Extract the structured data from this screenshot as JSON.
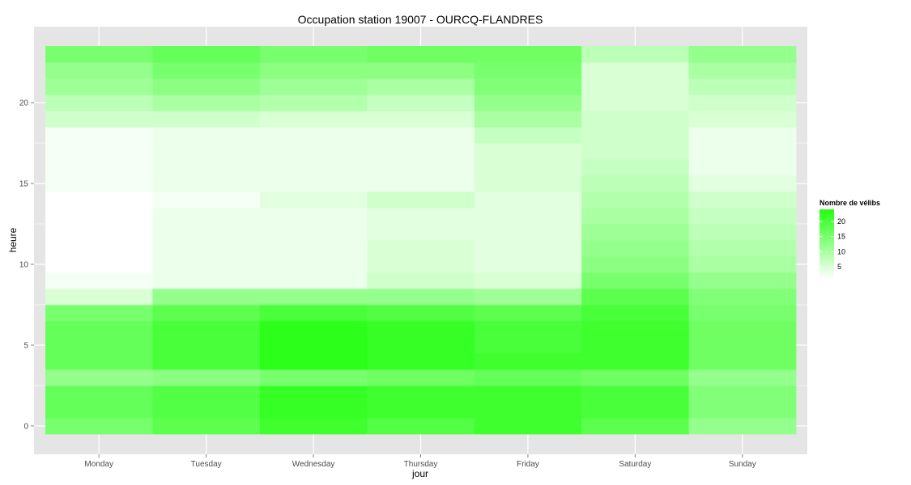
{
  "chart_data": {
    "type": "heatmap",
    "title": "Occupation station 19007 - OURCQ-FLANDRES",
    "xlabel": "jour",
    "ylabel": "heure",
    "x_categories": [
      "Monday",
      "Tuesday",
      "Wednesday",
      "Thursday",
      "Friday",
      "Saturday",
      "Sunday"
    ],
    "y_values": [
      0,
      1,
      2,
      3,
      4,
      5,
      6,
      7,
      8,
      9,
      10,
      11,
      12,
      13,
      14,
      15,
      16,
      17,
      18,
      19,
      20,
      21,
      22,
      23
    ],
    "y_ticks": [
      0,
      5,
      10,
      15,
      20
    ],
    "ylim": [
      -0.5,
      23.5
    ],
    "grid": true,
    "color_scale": {
      "low": "#ffffff",
      "high": "#22ff10",
      "min": 1,
      "max": 24
    },
    "legend": {
      "title": "Nombre de vélibs",
      "ticks": [
        5,
        10,
        15,
        20
      ],
      "position": "right"
    },
    "values_by_day": {
      "Monday": [
        15,
        17,
        17,
        12,
        17,
        17,
        17,
        15,
        5,
        2,
        1,
        1,
        1,
        1,
        1,
        2,
        2,
        2,
        2,
        6,
        8,
        11,
        12,
        15
      ],
      "Tuesday": [
        18,
        19,
        19,
        13,
        20,
        20,
        20,
        18,
        12,
        3,
        3,
        3,
        3,
        3,
        2,
        3,
        3,
        3,
        3,
        6,
        10,
        13,
        15,
        17
      ],
      "Wednesday": [
        21,
        22,
        22,
        15,
        23,
        23,
        23,
        20,
        12,
        3,
        3,
        3,
        3,
        3,
        4,
        3,
        3,
        3,
        3,
        5,
        9,
        11,
        13,
        15
      ],
      "Thursday": [
        19,
        21,
        21,
        16,
        22,
        22,
        22,
        19,
        12,
        6,
        5,
        5,
        4,
        4,
        6,
        3,
        3,
        3,
        3,
        5,
        7,
        10,
        13,
        16
      ],
      "Friday": [
        21,
        21,
        21,
        17,
        21,
        20,
        20,
        18,
        11,
        5,
        4,
        4,
        4,
        4,
        4,
        5,
        5,
        5,
        7,
        10,
        12,
        14,
        15,
        16
      ],
      "Saturday": [
        18,
        20,
        20,
        16,
        21,
        21,
        21,
        20,
        18,
        15,
        13,
        12,
        11,
        10,
        9,
        8,
        7,
        6,
        6,
        6,
        5,
        5,
        5,
        8
      ],
      "Sunday": [
        12,
        14,
        14,
        12,
        16,
        16,
        16,
        15,
        14,
        12,
        10,
        9,
        8,
        7,
        6,
        4,
        3,
        3,
        3,
        5,
        6,
        8,
        10,
        12
      ]
    }
  }
}
